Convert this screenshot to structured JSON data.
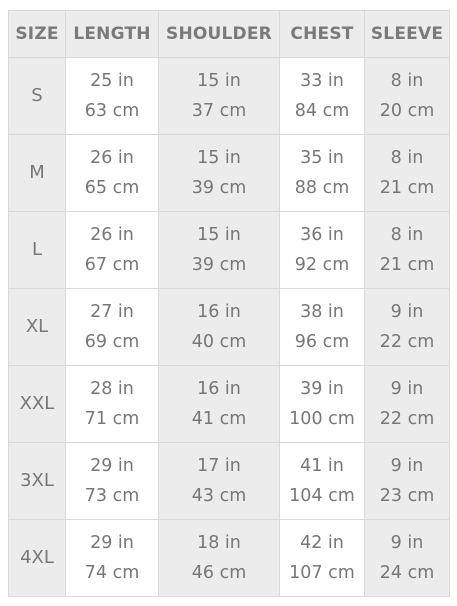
{
  "headers": [
    "SIZE",
    "LENGTH",
    "SHOULDER",
    "CHEST",
    "SLEEVE"
  ],
  "rows": [
    {
      "size": "S",
      "cells": [
        [
          "25 in",
          "63 cm"
        ],
        [
          "15 in",
          "37 cm"
        ],
        [
          "33 in",
          "84 cm"
        ],
        [
          "8 in",
          "20 cm"
        ]
      ]
    },
    {
      "size": "M",
      "cells": [
        [
          "26 in",
          "65 cm"
        ],
        [
          "15 in",
          "39 cm"
        ],
        [
          "35 in",
          "88 cm"
        ],
        [
          "8 in",
          "21 cm"
        ]
      ]
    },
    {
      "size": "L",
      "cells": [
        [
          "26 in",
          "67 cm"
        ],
        [
          "15 in",
          "39 cm"
        ],
        [
          "36 in",
          "92 cm"
        ],
        [
          "8 in",
          "21 cm"
        ]
      ]
    },
    {
      "size": "XL",
      "cells": [
        [
          "27 in",
          "69 cm"
        ],
        [
          "16 in",
          "40 cm"
        ],
        [
          "38 in",
          "96 cm"
        ],
        [
          "9 in",
          "22 cm"
        ]
      ]
    },
    {
      "size": "XXL",
      "cells": [
        [
          "28 in",
          "71 cm"
        ],
        [
          "16 in",
          "41 cm"
        ],
        [
          "39 in",
          "100 cm"
        ],
        [
          "9 in",
          "22 cm"
        ]
      ]
    },
    {
      "size": "3XL",
      "cells": [
        [
          "29 in",
          "73 cm"
        ],
        [
          "17 in",
          "43 cm"
        ],
        [
          "41 in",
          "104 cm"
        ],
        [
          "9 in",
          "23 cm"
        ]
      ]
    },
    {
      "size": "4XL",
      "cells": [
        [
          "29 in",
          "74 cm"
        ],
        [
          "18 in",
          "46 cm"
        ],
        [
          "42 in",
          "107 cm"
        ],
        [
          "9 in",
          "24 cm"
        ]
      ]
    }
  ],
  "colors": {
    "header_bg": "#ececec",
    "shaded_bg": "#ececec",
    "plain_bg": "#ffffff",
    "border": "#d9d9d9",
    "text": "#777777"
  }
}
